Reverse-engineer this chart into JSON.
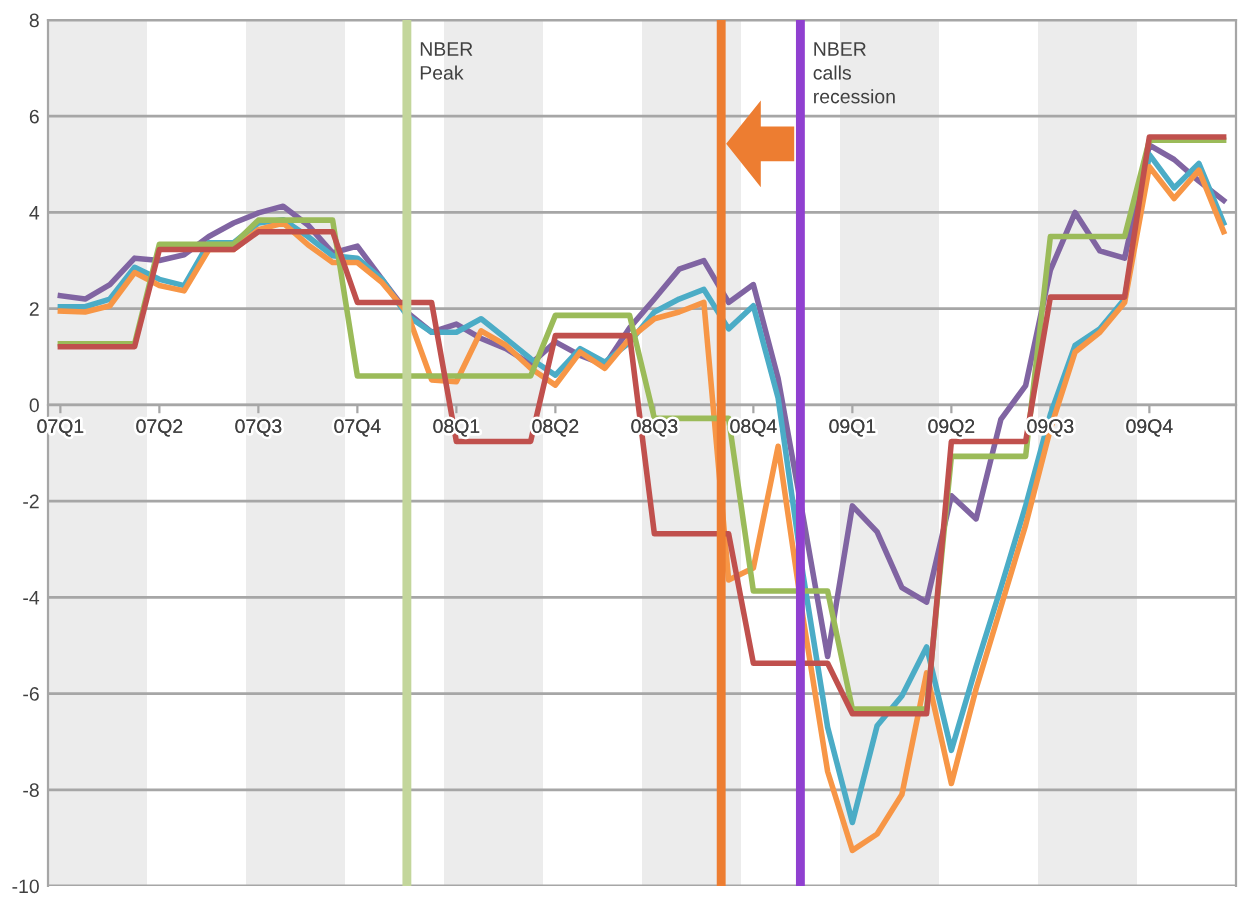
{
  "chart_data": {
    "type": "line",
    "categories": [
      "07Q1",
      null,
      null,
      null,
      "07Q2",
      null,
      null,
      null,
      "07Q3",
      null,
      null,
      null,
      "07Q4",
      null,
      null,
      null,
      "08Q1",
      null,
      null,
      null,
      "08Q2",
      null,
      null,
      null,
      "08Q3",
      null,
      null,
      null,
      "08Q4",
      null,
      null,
      null,
      "09Q1",
      null,
      null,
      null,
      "09Q2",
      null,
      null,
      null,
      "09Q3",
      null,
      null,
      null,
      "09Q4",
      null,
      null,
      null
    ],
    "ylim": [
      -10,
      8
    ],
    "yticks": [
      -10,
      -8,
      -6,
      -4,
      -2,
      0,
      2,
      4,
      6,
      8
    ],
    "grid": "y",
    "marker": "none",
    "line_style": "solid",
    "series": [
      {
        "color": "#8064a2",
        "values": [
          2.27,
          2.2,
          2.5,
          3.05,
          3.0,
          3.12,
          3.5,
          3.78,
          3.99,
          4.13,
          3.74,
          3.16,
          3.3,
          2.61,
          1.93,
          1.51,
          1.68,
          1.38,
          1.17,
          0.85,
          1.31,
          1.03,
          0.83,
          1.6,
          2.2,
          2.82,
          3.0,
          2.13,
          2.5,
          0.55,
          -2.3,
          -5.23,
          -2.1,
          -2.64,
          -3.8,
          -4.1,
          -1.89,
          -2.37,
          -0.3,
          0.4,
          2.8,
          4.0,
          3.2,
          3.05,
          5.4,
          5.1,
          4.65,
          4.25
        ]
      },
      {
        "color": "#4bacc6",
        "values": [
          2.04,
          2.04,
          2.2,
          2.86,
          2.61,
          2.48,
          3.37,
          3.37,
          3.78,
          3.85,
          3.5,
          3.1,
          3.05,
          2.61,
          1.86,
          1.51,
          1.51,
          1.79,
          1.38,
          0.96,
          0.62,
          1.17,
          0.89,
          1.3,
          1.93,
          2.2,
          2.4,
          1.58,
          2.06,
          0.14,
          -3.5,
          -6.7,
          -8.68,
          -6.67,
          -6.05,
          -5.03,
          -7.18,
          -5.44,
          -3.8,
          -2.1,
          -0.2,
          1.24,
          1.58,
          2.2,
          5.2,
          4.51,
          5.02,
          3.78
        ]
      },
      {
        "color": "#f79646",
        "values": [
          1.95,
          1.93,
          2.06,
          2.75,
          2.48,
          2.37,
          3.23,
          3.23,
          3.64,
          3.78,
          3.33,
          2.96,
          2.96,
          2.54,
          1.93,
          0.52,
          0.48,
          1.54,
          1.24,
          0.76,
          0.41,
          1.1,
          0.76,
          1.38,
          1.79,
          1.93,
          2.13,
          -3.64,
          -3.39,
          -0.86,
          -4.4,
          -7.62,
          -9.26,
          -8.92,
          -8.1,
          -5.57,
          -7.87,
          -5.9,
          -4.2,
          -2.5,
          -0.5,
          1.1,
          1.51,
          2.13,
          4.95,
          4.29,
          4.88,
          3.6
        ]
      },
      {
        "color": "#9bbb59",
        "values": [
          1.27,
          1.27,
          1.27,
          1.27,
          3.34,
          3.34,
          3.34,
          3.34,
          3.84,
          3.84,
          3.84,
          3.84,
          0.6,
          0.6,
          0.6,
          0.6,
          0.6,
          0.6,
          0.6,
          0.6,
          1.86,
          1.86,
          1.86,
          1.86,
          -0.28,
          -0.28,
          -0.28,
          -0.28,
          -3.87,
          -3.87,
          -3.87,
          -3.87,
          -6.32,
          -6.32,
          -6.32,
          -6.32,
          -1.07,
          -1.07,
          -1.07,
          -1.07,
          3.5,
          3.5,
          3.5,
          3.5,
          5.5,
          5.5,
          5.5,
          5.5
        ]
      },
      {
        "color": "#c0504d",
        "values": [
          1.21,
          1.21,
          1.21,
          1.21,
          3.23,
          3.23,
          3.23,
          3.23,
          3.6,
          3.6,
          3.6,
          3.6,
          2.13,
          2.13,
          2.13,
          2.13,
          -0.76,
          -0.76,
          -0.76,
          -0.76,
          1.44,
          1.44,
          1.44,
          1.44,
          -2.68,
          -2.68,
          -2.68,
          -2.68,
          -5.37,
          -5.37,
          -5.37,
          -5.37,
          -6.42,
          -6.42,
          -6.42,
          -6.42,
          -0.76,
          -0.76,
          -0.76,
          -0.76,
          2.24,
          2.24,
          2.24,
          2.24,
          5.57,
          5.57,
          5.57,
          5.57
        ]
      }
    ],
    "annotations": [
      "NBER\nPeak",
      "NBER\ncalls\nrecession"
    ]
  }
}
